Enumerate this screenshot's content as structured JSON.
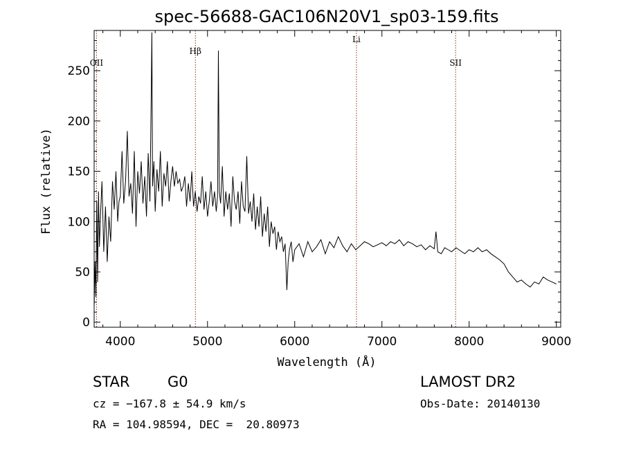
{
  "chart_data": {
    "type": "line",
    "title": "spec-56688-GAC106N20V1_sp03-159.fits",
    "xlabel": "Wavelength (Å)",
    "ylabel": "Flux (relative)",
    "xlim": [
      3700,
      9050
    ],
    "ylim": [
      -5,
      290
    ],
    "x_ticks": [
      4000,
      5000,
      6000,
      7000,
      8000,
      9000
    ],
    "y_ticks": [
      0,
      50,
      100,
      150,
      200,
      250
    ],
    "grid": false,
    "line_markers": [
      {
        "label": "OII",
        "x": 3727
      },
      {
        "label": "Hβ",
        "x": 4861
      },
      {
        "label": "Li",
        "x": 6708
      },
      {
        "label": "SII",
        "x": 7845
      }
    ],
    "series": [
      {
        "x": [
          3700,
          3710,
          3720,
          3730,
          3740,
          3750,
          3760,
          3775,
          3790,
          3810,
          3830,
          3850,
          3870,
          3890,
          3910,
          3930,
          3950,
          3970,
          3985,
          4000,
          4020,
          4040,
          4060,
          4080,
          4100,
          4120,
          4140,
          4160,
          4180,
          4200,
          4220,
          4240,
          4260,
          4280,
          4300,
          4320,
          4340,
          4355,
          4362,
          4370,
          4385,
          4400,
          4420,
          4440,
          4460,
          4480,
          4500,
          4520,
          4540,
          4560,
          4580,
          4600,
          4620,
          4640,
          4660,
          4680,
          4700,
          4720,
          4740,
          4760,
          4780,
          4800,
          4820,
          4840,
          4860,
          4880,
          4900,
          4920,
          4940,
          4960,
          4980,
          5000,
          5020,
          5040,
          5060,
          5080,
          5100,
          5115,
          5125,
          5135,
          5150,
          5170,
          5190,
          5210,
          5230,
          5250,
          5270,
          5290,
          5310,
          5330,
          5350,
          5370,
          5390,
          5410,
          5430,
          5450,
          5470,
          5490,
          5510,
          5530,
          5550,
          5570,
          5590,
          5610,
          5630,
          5650,
          5670,
          5690,
          5710,
          5730,
          5750,
          5770,
          5790,
          5810,
          5830,
          5850,
          5870,
          5890,
          5910,
          5925,
          5940,
          5960,
          5980,
          6000,
          6050,
          6100,
          6150,
          6200,
          6250,
          6300,
          6350,
          6400,
          6450,
          6500,
          6550,
          6600,
          6650,
          6700,
          6750,
          6800,
          6850,
          6900,
          6950,
          7000,
          7050,
          7100,
          7150,
          7200,
          7250,
          7300,
          7350,
          7400,
          7450,
          7500,
          7550,
          7600,
          7620,
          7640,
          7680,
          7720,
          7760,
          7800,
          7850,
          7900,
          7950,
          8000,
          8050,
          8100,
          8150,
          8200,
          8250,
          8300,
          8350,
          8400,
          8450,
          8500,
          8550,
          8600,
          8650,
          8700,
          8750,
          8800,
          8850,
          8900,
          8950,
          9000
        ],
        "y": [
          15,
          60,
          25,
          120,
          40,
          130,
          75,
          110,
          140,
          70,
          115,
          60,
          105,
          80,
          140,
          112,
          150,
          100,
          120,
          125,
          170,
          118,
          140,
          190,
          125,
          138,
          108,
          170,
          95,
          150,
          128,
          160,
          118,
          145,
          105,
          168,
          120,
          228,
          288,
          135,
          160,
          110,
          152,
          130,
          170,
          115,
          148,
          135,
          160,
          120,
          140,
          155,
          135,
          150,
          138,
          142,
          130,
          135,
          145,
          115,
          138,
          120,
          150,
          115,
          130,
          110,
          125,
          118,
          145,
          112,
          130,
          105,
          120,
          140,
          115,
          130,
          110,
          125,
          270,
          130,
          118,
          155,
          105,
          130,
          112,
          128,
          95,
          145,
          120,
          112,
          130,
          98,
          140,
          115,
          110,
          165,
          108,
          120,
          100,
          128,
          92,
          115,
          95,
          125,
          85,
          108,
          90,
          115,
          75,
          100,
          88,
          95,
          72,
          90,
          80,
          85,
          70,
          78,
          32,
          60,
          72,
          80,
          60,
          72,
          78,
          65,
          80,
          70,
          75,
          82,
          68,
          80,
          74,
          85,
          76,
          70,
          78,
          72,
          76,
          80,
          78,
          75,
          77,
          79,
          76,
          80,
          78,
          82,
          76,
          80,
          78,
          75,
          77,
          72,
          76,
          73,
          90,
          70,
          68,
          74,
          72,
          70,
          74,
          71,
          68,
          72,
          70,
          74,
          70,
          72,
          68,
          65,
          62,
          58,
          50,
          45,
          40,
          42,
          38,
          35,
          40,
          38,
          45,
          42,
          40,
          38
        ]
      }
    ]
  },
  "info": {
    "object_class": "STAR",
    "subclass": "G0",
    "survey": "LAMOST DR2",
    "cz": "cz = −167.8 ± 54.9 km/s",
    "obs_date": "Obs-Date: 20140130",
    "coords": "RA = 104.98594, DEC =  20.80973"
  }
}
